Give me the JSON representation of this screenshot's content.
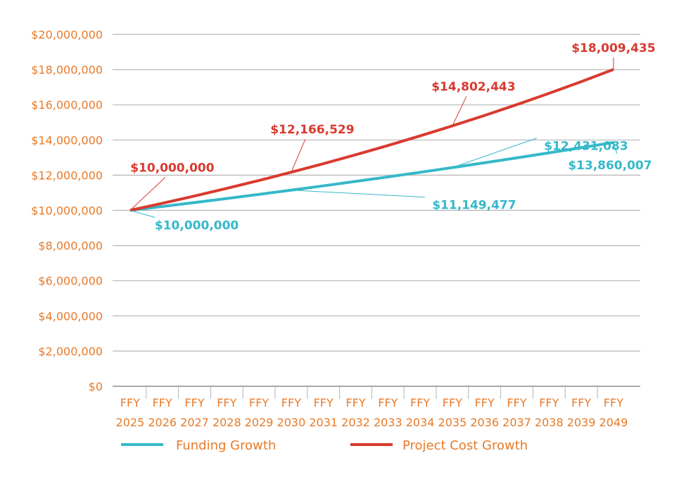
{
  "chart_data": {
    "type": "line",
    "title": "",
    "xlabel": "",
    "ylabel": "",
    "ylim": [
      0,
      20000000
    ],
    "y_ticks": [
      0,
      2000000,
      4000000,
      6000000,
      8000000,
      10000000,
      12000000,
      14000000,
      16000000,
      18000000,
      20000000
    ],
    "y_tick_labels": [
      "$0",
      "$2,000,000",
      "$4,000,000",
      "$6,000,000",
      "$8,000,000",
      "$10,000,000",
      "$12,000,000",
      "$14,000,000",
      "$16,000,000",
      "$18,000,000",
      "$20,000,000"
    ],
    "grid": "horizontal",
    "legend_position": "bottom",
    "categories": [
      [
        "FFY",
        "2025"
      ],
      [
        "FFY",
        "2026"
      ],
      [
        "FFY",
        "2027"
      ],
      [
        "FFY",
        "2028"
      ],
      [
        "FFY",
        "2029"
      ],
      [
        "FFY",
        "2030"
      ],
      [
        "FFY",
        "2031"
      ],
      [
        "FFY",
        "2032"
      ],
      [
        "FFY",
        "2033"
      ],
      [
        "FFY",
        "2034"
      ],
      [
        "FFY",
        "2035"
      ],
      [
        "FFY",
        "2036"
      ],
      [
        "FFY",
        "2037"
      ],
      [
        "FFY",
        "2038"
      ],
      [
        "FFY",
        "2039"
      ],
      [
        "FFY",
        "2049"
      ]
    ],
    "series": [
      {
        "name": "Funding Growth",
        "color": "#35b8c8",
        "values": [
          10000000,
          10220000,
          10444840,
          10674626,
          10909468,
          11149477,
          11394765,
          11645449,
          11901650,
          12163486,
          12431083,
          12704567,
          12984067,
          13269717,
          13561650,
          13860007
        ],
        "labels": [
          {
            "index": 0,
            "text": "$10,000,000"
          },
          {
            "index": 5,
            "text": "$11,149,477"
          },
          {
            "index": 10,
            "text": "$12,431,083"
          },
          {
            "index": 15,
            "text": "$13,860,007"
          }
        ]
      },
      {
        "name": "Project Cost Growth",
        "color": "#d93a2f",
        "values": [
          10000000,
          10400000,
          10816000,
          11248640,
          11698586,
          12166529,
          12653190,
          13159318,
          13685691,
          14233118,
          14802443,
          15394541,
          16010322,
          16650735,
          17316764,
          18009435
        ],
        "labels": [
          {
            "index": 0,
            "text": "$10,000,000"
          },
          {
            "index": 5,
            "text": "$12,166,529"
          },
          {
            "index": 10,
            "text": "$14,802,443"
          },
          {
            "index": 15,
            "text": "$18,009,435"
          }
        ]
      }
    ],
    "axis_text_color": "#e87a28"
  }
}
